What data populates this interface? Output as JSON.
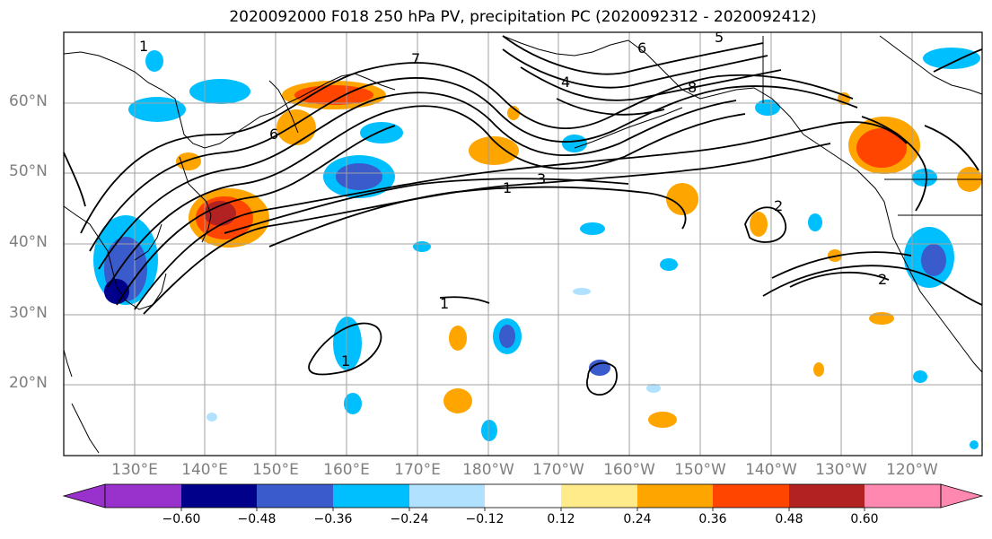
{
  "title": "2020092000 F018 250 hPa PV, precipitation PC (2020092312 - 2020092412)",
  "lat_labels": [
    "60°N",
    "50°N",
    "40°N",
    "30°N",
    "20°N"
  ],
  "lon_labels": [
    "130°E",
    "140°E",
    "150°E",
    "160°E",
    "170°E",
    "180°W",
    "170°W",
    "160°W",
    "150°W",
    "140°W",
    "130°W",
    "120°W"
  ],
  "contour_labels": [
    "7",
    "6",
    "5",
    "4",
    "8",
    "3",
    "1",
    "2",
    "1",
    "1",
    "2",
    "1",
    "6"
  ],
  "colorbar": {
    "ticks": [
      "−0.60",
      "−0.48",
      "−0.36",
      "−0.24",
      "−0.12",
      "0.12",
      "0.24",
      "0.36",
      "0.48",
      "0.60"
    ],
    "colors": [
      "#9932cc",
      "#00008b",
      "#3a5bcc",
      "#00bfff",
      "#b0e2ff",
      "#ffffff",
      "#ffeb8a",
      "#ffa500",
      "#ff4500",
      "#b22222",
      "#ff88b0"
    ]
  },
  "colors": {
    "land_outline": "#000000",
    "grid": "#a0a0a0",
    "contour": "#000000"
  }
}
